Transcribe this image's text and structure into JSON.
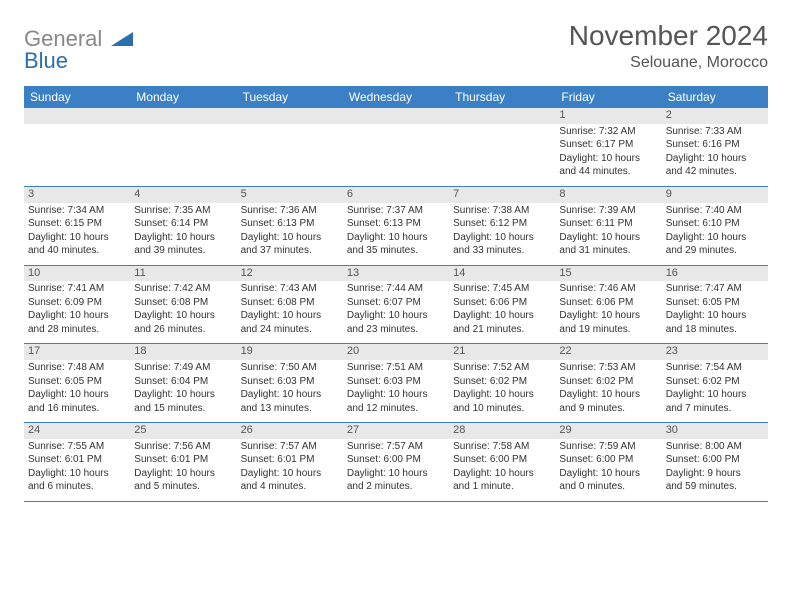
{
  "logo": {
    "gray": "General",
    "blue": "Blue"
  },
  "title": "November 2024",
  "location": "Selouane, Morocco",
  "header_bg": "#3b7fc4",
  "day_names": [
    "Sunday",
    "Monday",
    "Tuesday",
    "Wednesday",
    "Thursday",
    "Friday",
    "Saturday"
  ],
  "weeks": [
    [
      {
        "n": "",
        "sr": "",
        "ss": "",
        "dl1": "",
        "dl2": ""
      },
      {
        "n": "",
        "sr": "",
        "ss": "",
        "dl1": "",
        "dl2": ""
      },
      {
        "n": "",
        "sr": "",
        "ss": "",
        "dl1": "",
        "dl2": ""
      },
      {
        "n": "",
        "sr": "",
        "ss": "",
        "dl1": "",
        "dl2": ""
      },
      {
        "n": "",
        "sr": "",
        "ss": "",
        "dl1": "",
        "dl2": ""
      },
      {
        "n": "1",
        "sr": "Sunrise: 7:32 AM",
        "ss": "Sunset: 6:17 PM",
        "dl1": "Daylight: 10 hours",
        "dl2": "and 44 minutes."
      },
      {
        "n": "2",
        "sr": "Sunrise: 7:33 AM",
        "ss": "Sunset: 6:16 PM",
        "dl1": "Daylight: 10 hours",
        "dl2": "and 42 minutes."
      }
    ],
    [
      {
        "n": "3",
        "sr": "Sunrise: 7:34 AM",
        "ss": "Sunset: 6:15 PM",
        "dl1": "Daylight: 10 hours",
        "dl2": "and 40 minutes."
      },
      {
        "n": "4",
        "sr": "Sunrise: 7:35 AM",
        "ss": "Sunset: 6:14 PM",
        "dl1": "Daylight: 10 hours",
        "dl2": "and 39 minutes."
      },
      {
        "n": "5",
        "sr": "Sunrise: 7:36 AM",
        "ss": "Sunset: 6:13 PM",
        "dl1": "Daylight: 10 hours",
        "dl2": "and 37 minutes."
      },
      {
        "n": "6",
        "sr": "Sunrise: 7:37 AM",
        "ss": "Sunset: 6:13 PM",
        "dl1": "Daylight: 10 hours",
        "dl2": "and 35 minutes."
      },
      {
        "n": "7",
        "sr": "Sunrise: 7:38 AM",
        "ss": "Sunset: 6:12 PM",
        "dl1": "Daylight: 10 hours",
        "dl2": "and 33 minutes."
      },
      {
        "n": "8",
        "sr": "Sunrise: 7:39 AM",
        "ss": "Sunset: 6:11 PM",
        "dl1": "Daylight: 10 hours",
        "dl2": "and 31 minutes."
      },
      {
        "n": "9",
        "sr": "Sunrise: 7:40 AM",
        "ss": "Sunset: 6:10 PM",
        "dl1": "Daylight: 10 hours",
        "dl2": "and 29 minutes."
      }
    ],
    [
      {
        "n": "10",
        "sr": "Sunrise: 7:41 AM",
        "ss": "Sunset: 6:09 PM",
        "dl1": "Daylight: 10 hours",
        "dl2": "and 28 minutes."
      },
      {
        "n": "11",
        "sr": "Sunrise: 7:42 AM",
        "ss": "Sunset: 6:08 PM",
        "dl1": "Daylight: 10 hours",
        "dl2": "and 26 minutes."
      },
      {
        "n": "12",
        "sr": "Sunrise: 7:43 AM",
        "ss": "Sunset: 6:08 PM",
        "dl1": "Daylight: 10 hours",
        "dl2": "and 24 minutes."
      },
      {
        "n": "13",
        "sr": "Sunrise: 7:44 AM",
        "ss": "Sunset: 6:07 PM",
        "dl1": "Daylight: 10 hours",
        "dl2": "and 23 minutes."
      },
      {
        "n": "14",
        "sr": "Sunrise: 7:45 AM",
        "ss": "Sunset: 6:06 PM",
        "dl1": "Daylight: 10 hours",
        "dl2": "and 21 minutes."
      },
      {
        "n": "15",
        "sr": "Sunrise: 7:46 AM",
        "ss": "Sunset: 6:06 PM",
        "dl1": "Daylight: 10 hours",
        "dl2": "and 19 minutes."
      },
      {
        "n": "16",
        "sr": "Sunrise: 7:47 AM",
        "ss": "Sunset: 6:05 PM",
        "dl1": "Daylight: 10 hours",
        "dl2": "and 18 minutes."
      }
    ],
    [
      {
        "n": "17",
        "sr": "Sunrise: 7:48 AM",
        "ss": "Sunset: 6:05 PM",
        "dl1": "Daylight: 10 hours",
        "dl2": "and 16 minutes."
      },
      {
        "n": "18",
        "sr": "Sunrise: 7:49 AM",
        "ss": "Sunset: 6:04 PM",
        "dl1": "Daylight: 10 hours",
        "dl2": "and 15 minutes."
      },
      {
        "n": "19",
        "sr": "Sunrise: 7:50 AM",
        "ss": "Sunset: 6:03 PM",
        "dl1": "Daylight: 10 hours",
        "dl2": "and 13 minutes."
      },
      {
        "n": "20",
        "sr": "Sunrise: 7:51 AM",
        "ss": "Sunset: 6:03 PM",
        "dl1": "Daylight: 10 hours",
        "dl2": "and 12 minutes."
      },
      {
        "n": "21",
        "sr": "Sunrise: 7:52 AM",
        "ss": "Sunset: 6:02 PM",
        "dl1": "Daylight: 10 hours",
        "dl2": "and 10 minutes."
      },
      {
        "n": "22",
        "sr": "Sunrise: 7:53 AM",
        "ss": "Sunset: 6:02 PM",
        "dl1": "Daylight: 10 hours",
        "dl2": "and 9 minutes."
      },
      {
        "n": "23",
        "sr": "Sunrise: 7:54 AM",
        "ss": "Sunset: 6:02 PM",
        "dl1": "Daylight: 10 hours",
        "dl2": "and 7 minutes."
      }
    ],
    [
      {
        "n": "24",
        "sr": "Sunrise: 7:55 AM",
        "ss": "Sunset: 6:01 PM",
        "dl1": "Daylight: 10 hours",
        "dl2": "and 6 minutes."
      },
      {
        "n": "25",
        "sr": "Sunrise: 7:56 AM",
        "ss": "Sunset: 6:01 PM",
        "dl1": "Daylight: 10 hours",
        "dl2": "and 5 minutes."
      },
      {
        "n": "26",
        "sr": "Sunrise: 7:57 AM",
        "ss": "Sunset: 6:01 PM",
        "dl1": "Daylight: 10 hours",
        "dl2": "and 4 minutes."
      },
      {
        "n": "27",
        "sr": "Sunrise: 7:57 AM",
        "ss": "Sunset: 6:00 PM",
        "dl1": "Daylight: 10 hours",
        "dl2": "and 2 minutes."
      },
      {
        "n": "28",
        "sr": "Sunrise: 7:58 AM",
        "ss": "Sunset: 6:00 PM",
        "dl1": "Daylight: 10 hours",
        "dl2": "and 1 minute."
      },
      {
        "n": "29",
        "sr": "Sunrise: 7:59 AM",
        "ss": "Sunset: 6:00 PM",
        "dl1": "Daylight: 10 hours",
        "dl2": "and 0 minutes."
      },
      {
        "n": "30",
        "sr": "Sunrise: 8:00 AM",
        "ss": "Sunset: 6:00 PM",
        "dl1": "Daylight: 9 hours",
        "dl2": "and 59 minutes."
      }
    ]
  ]
}
